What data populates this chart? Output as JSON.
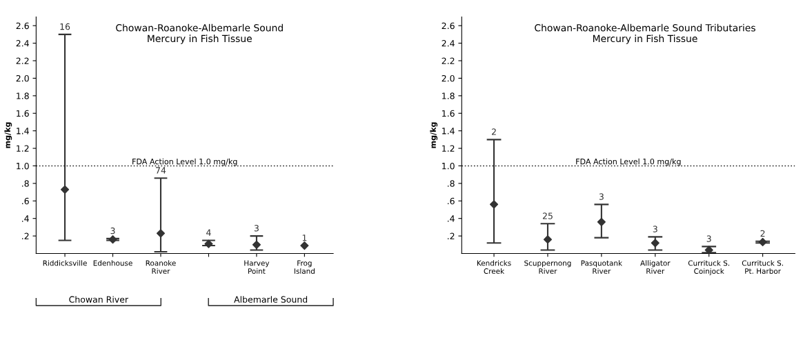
{
  "chart_data": [
    {
      "type": "scatter",
      "title": "Chowan-Roanoke-Albemarle Sound\nMercury in Fish Tissue",
      "ylabel": "mg/kg",
      "categories": [
        "Riddicksville",
        "Edenhouse",
        "Roanoke\nRiver",
        null,
        "Harvey\nPoint",
        "Frog\nIsland"
      ],
      "values": [
        0.73,
        0.16,
        0.23,
        0.11,
        0.1,
        0.09
      ],
      "errors": [
        [
          0.15,
          2.5
        ],
        [
          0.15,
          0.17
        ],
        [
          0.02,
          0.86
        ],
        [
          0.09,
          0.15
        ],
        [
          0.04,
          0.2
        ],
        null
      ],
      "color": "#333333",
      "marker": "diamond",
      "ylim": [
        0,
        2.7
      ],
      "yticks": [
        {
          "value": 0.2,
          "label": ".2"
        },
        {
          "value": 0.4,
          "label": ".4"
        },
        {
          "value": 0.6,
          "label": ".6"
        },
        {
          "value": 0.8,
          "label": ".8"
        },
        {
          "value": 1.0,
          "label": "1.0"
        },
        {
          "value": 1.2,
          "label": "1.2"
        },
        {
          "value": 1.4,
          "label": "1.4"
        },
        {
          "value": 1.6,
          "label": "1.6"
        },
        {
          "value": 1.8,
          "label": "1.8"
        },
        {
          "value": 2.0,
          "label": "2.0"
        },
        {
          "value": 2.2,
          "label": "2.2"
        },
        {
          "value": 2.4,
          "label": "2.4"
        },
        {
          "value": 2.6,
          "label": "2.6"
        }
      ],
      "ref_lines": [
        {
          "axis": "y",
          "value": 1.0,
          "label": "FDA Action Level 1.0 mg/kg",
          "line_style": "dotted"
        }
      ],
      "annotations": [
        {
          "text": "16",
          "x": "Riddicksville",
          "y": 2.5
        },
        {
          "text": "3",
          "x": "Edenhouse",
          "y": 0.17
        },
        {
          "text": "74",
          "x": "Roanoke\nRiver",
          "y": 0.86
        },
        {
          "text": "4",
          "y": 0.15
        },
        {
          "text": "3",
          "x": "Harvey\nPoint",
          "y": 0.2
        },
        {
          "text": "1",
          "x": "Frog\nIsland",
          "y": 0.09
        },
        "Chowan River",
        "Albemarle Sound"
      ],
      "grid": false,
      "legend": false
    },
    {
      "type": "scatter",
      "title": "Chowan-Roanoke-Albemarle Sound Tributaries\nMercury in Fish Tissue",
      "ylabel": "mg/kg",
      "categories": [
        "Kendricks\nCreek",
        "Scuppernong\nRiver",
        "Pasquotank\nRiver",
        "Alligator\nRiver",
        "Currituck S.\nCoinjock",
        "Currituck S.\nPt. Harbor"
      ],
      "values": [
        0.56,
        0.16,
        0.36,
        0.12,
        0.04,
        0.13
      ],
      "errors": [
        [
          0.12,
          1.3
        ],
        [
          0.04,
          0.34
        ],
        [
          0.18,
          0.56
        ],
        [
          0.04,
          0.19
        ],
        [
          0.01,
          0.08
        ],
        [
          0.12,
          0.14
        ]
      ],
      "annotations": [
        {
          "text": "2",
          "x": "Kendricks\nCreek",
          "y": 1.3
        },
        {
          "text": "25",
          "x": "Scuppernong\nRiver",
          "y": 0.34
        },
        {
          "text": "3",
          "x": "Pasquotank\nRiver",
          "y": 0.56
        },
        {
          "text": "3",
          "x": "Alligator\nRiver",
          "y": 0.19
        },
        {
          "text": "3",
          "x": "Currituck S.\nCoinjock",
          "y": 0.08
        },
        {
          "text": "2",
          "x": "Currituck S.\nPt. Harbor",
          "y": 0.14
        }
      ],
      "color": "#333333",
      "marker": "diamond",
      "ylim": [
        0,
        2.7
      ],
      "yticks": [
        {
          "value": 0.2,
          "label": ".2"
        },
        {
          "value": 0.4,
          "label": ".4"
        },
        {
          "value": 0.6,
          "label": ".6"
        },
        {
          "value": 0.8,
          "label": ".8"
        },
        {
          "value": 1.0,
          "label": "1.0"
        },
        {
          "value": 1.2,
          "label": "1.2"
        },
        {
          "value": 1.4,
          "label": "1.4"
        },
        {
          "value": 1.6,
          "label": "1.6"
        },
        {
          "value": 1.8,
          "label": "1.8"
        },
        {
          "value": 2.0,
          "label": "2.0"
        },
        {
          "value": 2.2,
          "label": "2.2"
        },
        {
          "value": 2.4,
          "label": "2.4"
        },
        {
          "value": 2.6,
          "label": "2.6"
        }
      ],
      "ref_lines": [
        {
          "axis": "y",
          "value": 1.0,
          "label": "FDA Action Level 1.0 mg/kg",
          "line_style": "dotted"
        }
      ],
      "grid": false,
      "legend": false
    }
  ]
}
